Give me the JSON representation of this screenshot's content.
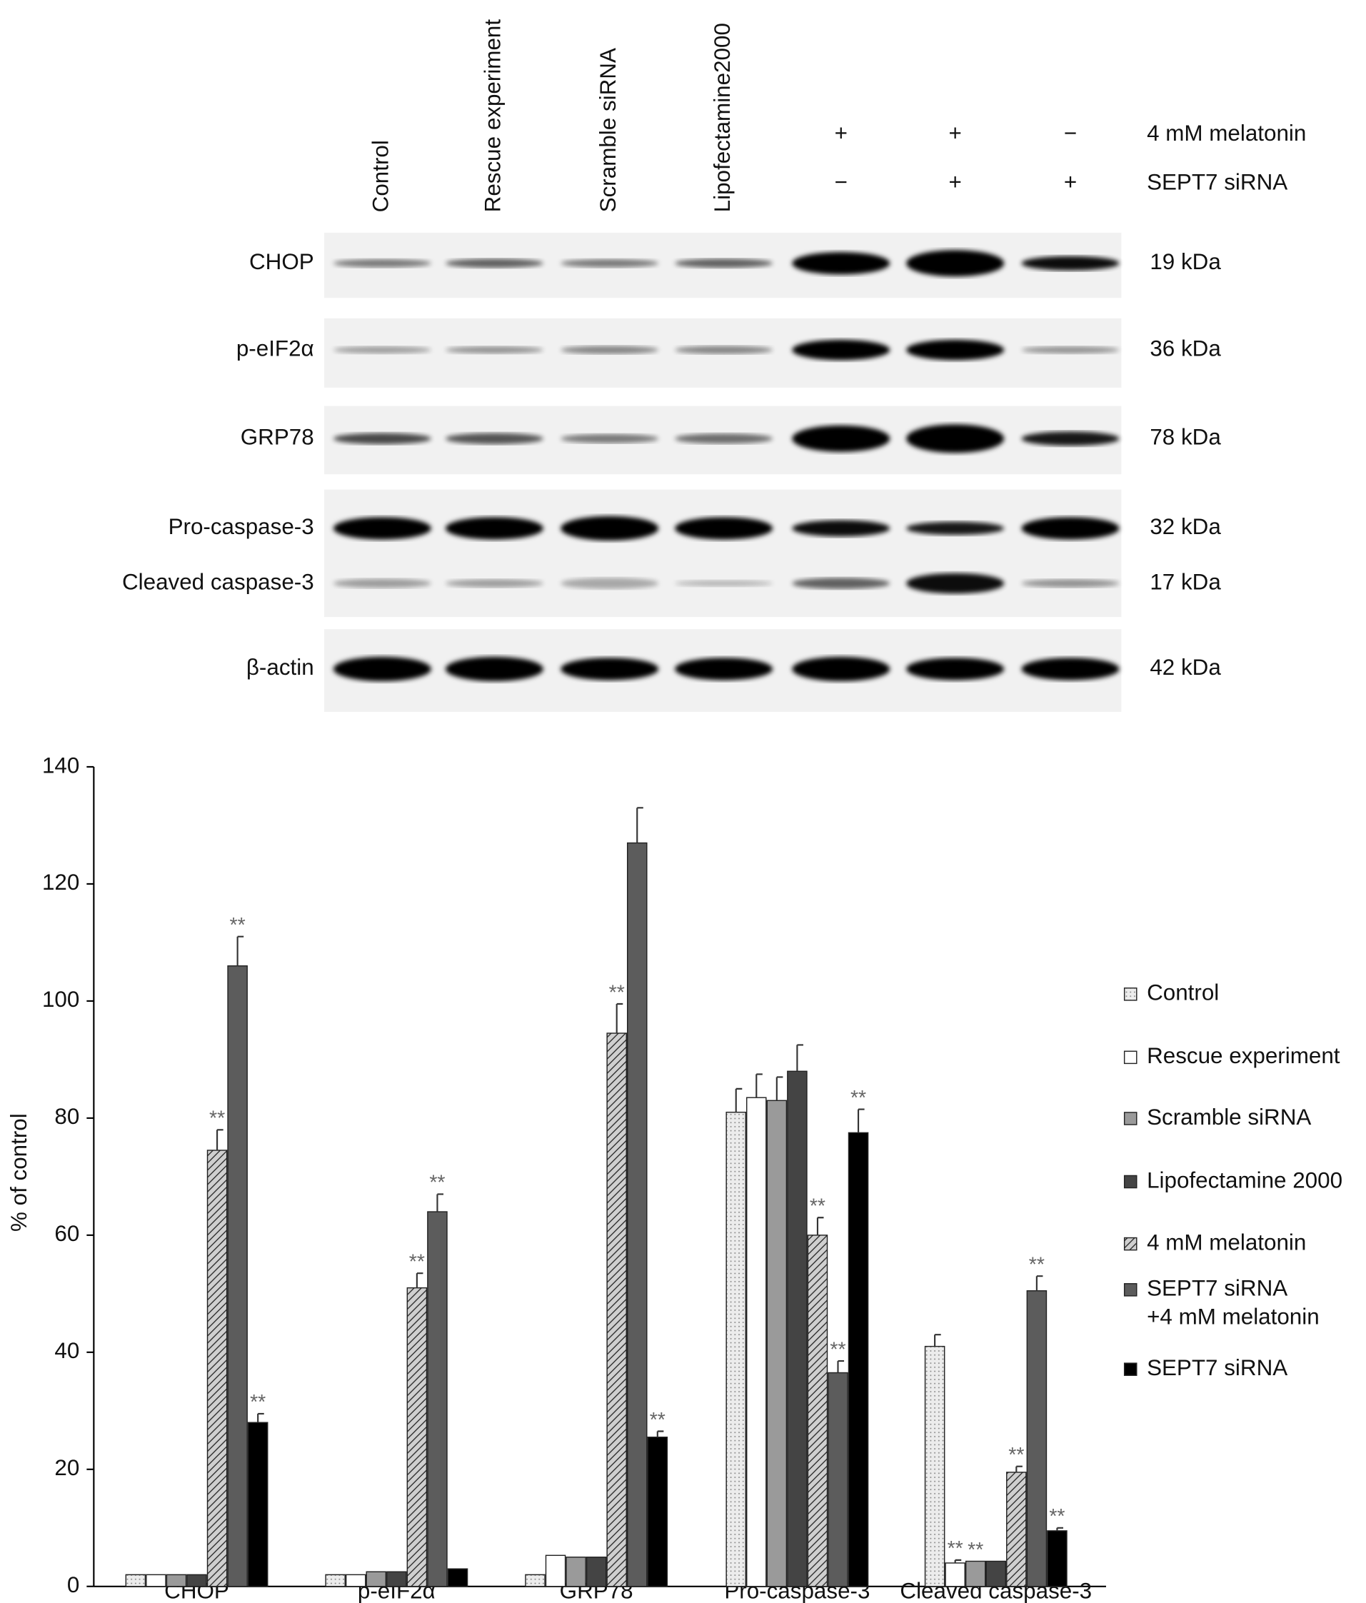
{
  "blot": {
    "lanes": [
      "Control",
      "Rescue experiment",
      "Scramble siRNA",
      "Lipofectamine2000",
      null,
      null,
      null
    ],
    "treatments": [
      {
        "label": "4 mM melatonin",
        "signs": [
          null,
          null,
          null,
          null,
          "+",
          "+",
          "−"
        ]
      },
      {
        "label": "SEPT7 siRNA",
        "signs": [
          null,
          null,
          null,
          null,
          "−",
          "+",
          "+"
        ]
      }
    ],
    "proteins": [
      {
        "label": "CHOP",
        "kda": "19 kDa"
      },
      {
        "label": "p-eIF2α",
        "kda": "36 kDa"
      },
      {
        "label": "GRP78",
        "kda": "78 kDa"
      },
      {
        "label": "Pro-caspase-3",
        "kda": "32 kDa"
      },
      {
        "label": "Cleaved caspase-3",
        "kda": "17 kDa"
      },
      {
        "label": "β-actin",
        "kda": "42 kDa"
      }
    ]
  },
  "chart_data": {
    "type": "bar",
    "ylabel": "% of control",
    "categories": [
      "CHOP",
      "p-eIF2α",
      "GRP78",
      "Pro-caspase-3",
      "Cleaved caspase-3"
    ],
    "ylim": [
      0,
      140
    ],
    "yticks": [
      0,
      20,
      40,
      60,
      80,
      100,
      120,
      140
    ],
    "significance_label": "**",
    "series": [
      {
        "name": "Control",
        "color": "#e6e6e6",
        "pattern": "dots",
        "values": [
          2,
          2,
          2,
          81,
          41
        ],
        "errors": [
          0,
          0,
          0,
          4,
          2
        ],
        "significant": [
          false,
          false,
          false,
          false,
          false
        ]
      },
      {
        "name": "Rescue experiment",
        "color": "#ffffff",
        "values": [
          2,
          2,
          5.3,
          83.5,
          4
        ],
        "errors": [
          0,
          0,
          0,
          4,
          0.5
        ],
        "significant": [
          false,
          false,
          false,
          false,
          true
        ]
      },
      {
        "name": "Scramble siRNA",
        "color": "#9a9a9a",
        "values": [
          2,
          2.5,
          5,
          83,
          4.3
        ],
        "errors": [
          0,
          0,
          0,
          4,
          0
        ],
        "significant": [
          false,
          false,
          false,
          false,
          true
        ]
      },
      {
        "name": "Lipofectamine 2000",
        "color": "#444444",
        "values": [
          2,
          2.5,
          5,
          88,
          4.3
        ],
        "errors": [
          0,
          0,
          0,
          4.5,
          0
        ],
        "significant": [
          false,
          false,
          false,
          false,
          false
        ]
      },
      {
        "name": "4 mM melatonin",
        "color": "#b0b0b0",
        "pattern": "hatch",
        "values": [
          74.5,
          51,
          94.5,
          60,
          19.5
        ],
        "errors": [
          3.5,
          2.5,
          5,
          3,
          1
        ],
        "significant": [
          true,
          true,
          true,
          true,
          true
        ]
      },
      {
        "name": "SEPT7 siRNA\n+4 mM melatonin",
        "color": "#5c5c5c",
        "values": [
          106,
          64,
          127,
          36.5,
          50.5
        ],
        "errors": [
          5,
          3,
          6,
          2,
          2.5
        ],
        "significant": [
          true,
          true,
          false,
          true,
          true
        ]
      },
      {
        "name": "SEPT7 siRNA",
        "color": "#000000",
        "values": [
          28,
          3,
          25.5,
          77.5,
          9.5
        ],
        "errors": [
          1.5,
          0,
          1,
          4,
          0.5
        ],
        "significant": [
          true,
          false,
          true,
          true,
          true
        ]
      }
    ]
  }
}
